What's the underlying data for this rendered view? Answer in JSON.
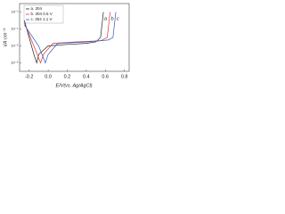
{
  "chart_data": {
    "type": "line",
    "x_label": "E/V(vs. Ag/AgCl)",
    "y_label": "i/A·cm⁻²",
    "xlim": [
      -0.3,
      0.85
    ],
    "xticks": [
      -0.2,
      {
        "value": 0,
        "label": "0.0"
      },
      0.2,
      0.4,
      0.6,
      0.8
    ],
    "ylim": [
      1e-09,
      0.1
    ],
    "yticks": [
      {
        "value": 1e-08,
        "label": "10⁻⁸"
      },
      {
        "value": 1e-06,
        "label": "10⁻⁶"
      },
      {
        "value": 0.0001,
        "label": "10⁻⁴"
      },
      {
        "value": 0.01,
        "label": "10⁻²"
      }
    ],
    "y_scale": "log",
    "legend": "upper left",
    "series": [
      {
        "name": "a. 304",
        "label": "a",
        "color": "#222222",
        "x": [
          -0.25,
          -0.2,
          -0.15,
          -0.12,
          -0.1,
          0.0,
          0.2,
          0.4,
          0.5,
          0.55,
          0.57,
          0.58
        ],
        "values": [
          0.001,
          1e-05,
          1e-07,
          1e-08,
          1e-07,
          1e-06,
          1.5e-06,
          2e-06,
          3e-06,
          1e-05,
          0.001,
          0.01
        ]
      },
      {
        "name": "b. 304 0.5 V",
        "label": "b",
        "color": "#d9342b",
        "x": [
          -0.25,
          -0.15,
          -0.08,
          -0.05,
          0.05,
          0.3,
          0.55,
          0.62,
          0.64,
          0.65
        ],
        "values": [
          0.0005,
          1e-06,
          1e-08,
          1e-07,
          2e-06,
          3e-06,
          4e-06,
          1e-05,
          0.001,
          0.01
        ]
      },
      {
        "name": "c. 304 1.1 V",
        "label": "c",
        "color": "#2f55c8",
        "x": [
          -0.25,
          -0.1,
          -0.03,
          0.0,
          0.1,
          0.4,
          0.63,
          0.68,
          0.7,
          0.71
        ],
        "values": [
          0.0003,
          1e-06,
          1e-08,
          1e-07,
          2e-06,
          3e-06,
          5e-06,
          1e-05,
          0.001,
          0.01
        ]
      }
    ]
  }
}
